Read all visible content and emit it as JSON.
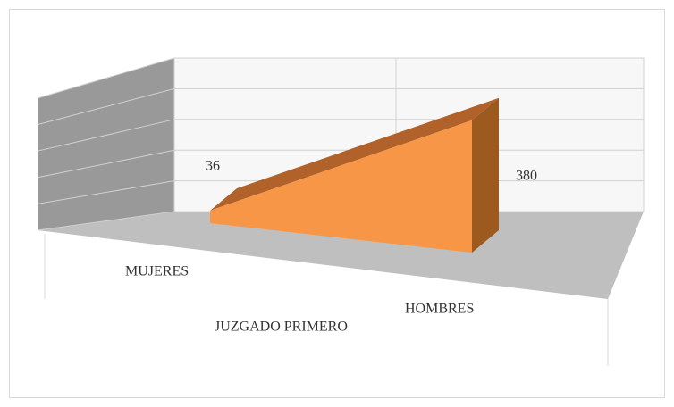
{
  "chart_data": {
    "type": "area3d",
    "categories": [
      "MUJERES",
      "HOMBRES"
    ],
    "series": [
      {
        "name": "JUZGADO PRIMERO",
        "color": "#f79646",
        "values": [
          36,
          380
        ]
      }
    ],
    "ylim": [
      0,
      500
    ],
    "yticks": [
      0,
      100,
      200,
      300,
      400,
      500
    ],
    "grid": true
  }
}
